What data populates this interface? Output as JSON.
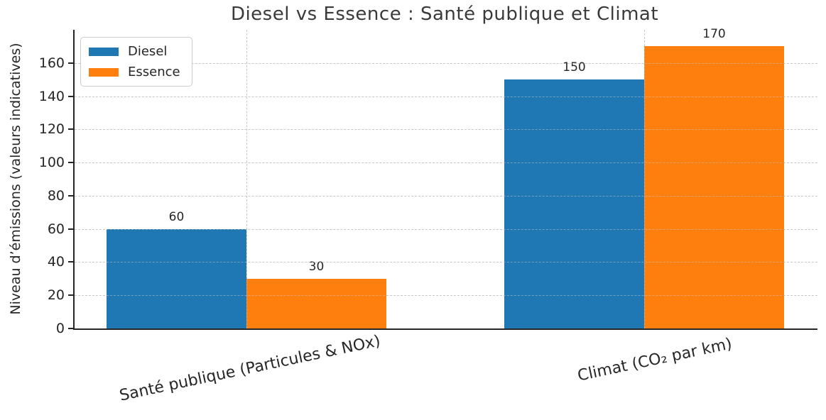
{
  "window": {
    "background": "#ffffff"
  },
  "chart_data": {
    "type": "bar",
    "title": "Diesel vs Essence : Santé publique et Climat",
    "ylabel": "Niveau d’émissions (valeurs indicatives)",
    "xlabel": "",
    "categories": [
      "Santé publique (Particules & NOx)",
      "Climat (CO₂ par km)"
    ],
    "series": [
      {
        "name": "Diesel",
        "color": "#1f77b4",
        "values": [
          60,
          150
        ]
      },
      {
        "name": "Essence",
        "color": "#ff7f0e",
        "values": [
          30,
          170
        ]
      }
    ],
    "value_labels": [
      "60",
      "30",
      "150",
      "170"
    ],
    "yticks": [
      0,
      20,
      40,
      60,
      80,
      100,
      120,
      140,
      160
    ],
    "ylim": [
      0,
      180
    ],
    "grid": {
      "visible": true,
      "style": "dashed",
      "color": "#c9c9c9",
      "axes": "both"
    },
    "legend": {
      "position": "upper-left",
      "entries": [
        "Diesel",
        "Essence"
      ]
    },
    "axis": {
      "spine_color": "#262626",
      "text_color": "#262626"
    }
  }
}
